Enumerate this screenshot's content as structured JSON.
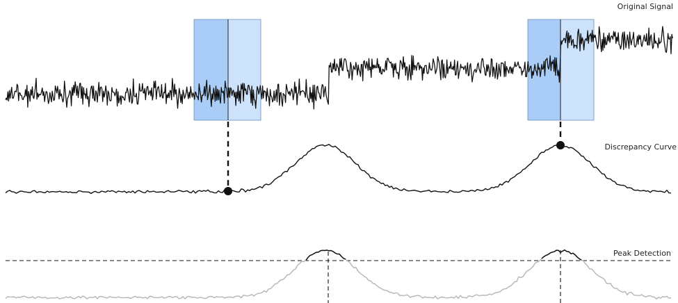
{
  "labels": {
    "original_signal": "Original Signal",
    "discrepancy_curve": "Discrepancy Curve",
    "peak_detection": "Peak Detection"
  },
  "colors": {
    "signal": "#111111",
    "window_left": "#a9cdf7",
    "window_right": "#cde2fb",
    "window_border": "#6a8fbf",
    "peak_above": "#111111",
    "peak_below": "#b5b5b5"
  }
}
